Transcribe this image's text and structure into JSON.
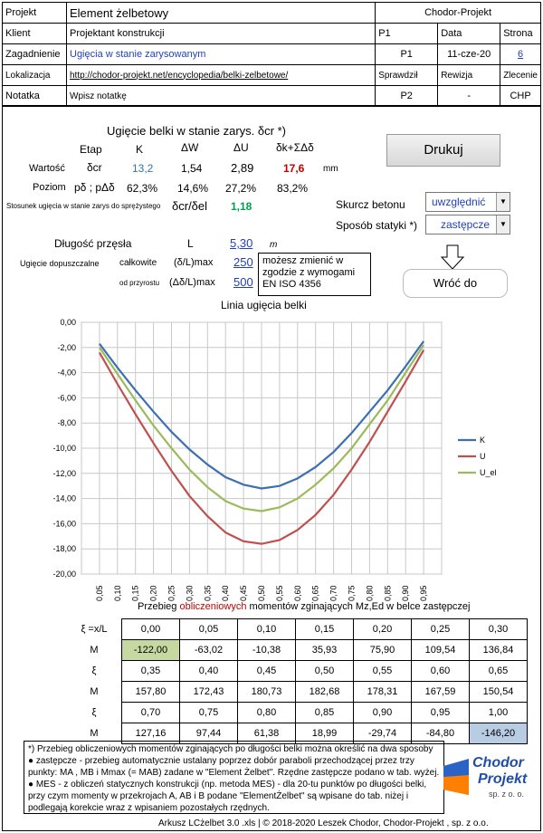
{
  "header": {
    "projekt_lbl": "Projekt",
    "projekt_val": "Element żelbetowy",
    "brand": "Chodor-Projekt",
    "klient_lbl": "Klient",
    "klient_val": "Projektant konstrukcji",
    "p1_lbl": "P1",
    "data_lbl": "Data",
    "strona_lbl": "Strona",
    "zag_lbl": "Zagadnienie",
    "zag_val": "Ugięcia w stanie zarysowanym",
    "p1_val": "P1",
    "data_val": "11-cze-20",
    "strona_val": "6",
    "lok_lbl": "Lokalizacja",
    "lok_val": "http://chodor-projekt.net/encyclopedia/belki-zelbetowe/",
    "spr_lbl": "Sprawdził",
    "rew_lbl": "Rewizja",
    "zlec_lbl": "Zlecenie",
    "not_lbl": "Notatka",
    "not_val": "Wpisz notatkę",
    "spr_val": "P2",
    "rew_val": "-",
    "zlec_val": "CHP"
  },
  "calc": {
    "title": "Ugięcie belki w stanie zarys. δcr *)",
    "col_etap": "Etap",
    "col_k": "K",
    "col_dw": "ΔW",
    "col_du": "ΔU",
    "col_sum": "δk+ΣΔδ",
    "row1_lbl": "Wartość",
    "row1_sym": "δcr",
    "row1_k": "13,2",
    "row1_dw": "1,54",
    "row1_du": "2,89",
    "row1_sum": "17,6",
    "row1_unit": "mm",
    "row2_lbl": "Poziom",
    "row2_sym": "pδ ; pΔδ",
    "row2_k": "62,3%",
    "row2_dw": "14,6%",
    "row2_du": "27,2%",
    "row2_sum": "83,2%",
    "row3_lbl": "Stosunek ugięcia w stanie zarys do sprężystego",
    "row3_sym": "δcr/δel",
    "row3_val": "1,18",
    "len_lbl": "Długość przęsła",
    "len_sym": "L",
    "len_val": "5,30",
    "len_unit": "m",
    "dop_lbl": "Ugięcie dopuszczalne",
    "calk_lbl": "całkowite",
    "calk_sym": "(δ/L)max",
    "calk_val": "250",
    "przy_lbl": "od przyrostu",
    "przy_sym": "(Δδ/L)max",
    "przy_val": "500",
    "note": "możesz zmienić w zgodzie z wymogami EN ISO 4356"
  },
  "controls": {
    "print_btn": "Drukuj",
    "skurcz_lbl": "Skurcz betonu",
    "skurcz_val": "uwzględnić",
    "statyka_lbl": "Sposób statyki *)",
    "statyka_val": "zastępcze",
    "back_btn": "Wróć do"
  },
  "chart_data": {
    "type": "line",
    "title": "Linia ugięcia belki",
    "x": [
      0.05,
      0.1,
      0.15,
      0.2,
      0.25,
      0.3,
      0.35,
      0.4,
      0.45,
      0.5,
      0.55,
      0.6,
      0.65,
      0.7,
      0.75,
      0.8,
      0.85,
      0.9,
      0.95
    ],
    "xtick_labels": [
      "0,05",
      "0,10",
      "0,15",
      "0,20",
      "0,25",
      "0,30",
      "0,35",
      "0,40",
      "0,45",
      "0,50",
      "0,55",
      "0,60",
      "0,65",
      "0,70",
      "0,75",
      "0,80",
      "0,85",
      "0,90",
      "0,95"
    ],
    "ylim": [
      -20,
      0
    ],
    "ytick_labels": [
      "0,00",
      "-2,00",
      "-4,00",
      "-6,00",
      "-8,00",
      "-10,00",
      "-12,00",
      "-14,00",
      "-16,00",
      "-18,00",
      "-20,00"
    ],
    "series": [
      {
        "name": "K",
        "color": "#3c6fb4",
        "values": [
          -1.7,
          -3.6,
          -5.4,
          -7.1,
          -8.7,
          -10.1,
          -11.3,
          -12.3,
          -12.9,
          -13.2,
          -13.0,
          -12.4,
          -11.5,
          -10.3,
          -8.8,
          -7.1,
          -5.4,
          -3.5,
          -1.5
        ]
      },
      {
        "name": "U",
        "color": "#c0504d",
        "values": [
          -2.4,
          -4.9,
          -7.3,
          -9.6,
          -11.8,
          -13.8,
          -15.4,
          -16.7,
          -17.4,
          -17.6,
          -17.3,
          -16.5,
          -15.3,
          -13.7,
          -11.7,
          -9.5,
          -7.1,
          -4.7,
          -2.2
        ]
      },
      {
        "name": "U_el",
        "color": "#9bbb59",
        "values": [
          -2.0,
          -4.1,
          -6.2,
          -8.2,
          -10.0,
          -11.7,
          -13.1,
          -14.2,
          -14.8,
          -15.0,
          -14.7,
          -14.0,
          -12.9,
          -11.6,
          -10.0,
          -8.1,
          -6.2,
          -4.0,
          -1.8
        ]
      }
    ]
  },
  "moments": {
    "title_pre": "Przebieg ",
    "title_red": "obliczeniowych",
    "title_post": " momentów zginających Mz,Ed w belce zastępczej",
    "rows": [
      {
        "h": "ξ =x/L",
        "v": [
          "0,00",
          "0,05",
          "0,10",
          "0,15",
          "0,20",
          "0,25",
          "0,30"
        ]
      },
      {
        "h": "M",
        "v": [
          "-122,00",
          "-63,02",
          "-10,38",
          "35,93",
          "75,90",
          "109,54",
          "136,84"
        ]
      },
      {
        "h": "ξ",
        "v": [
          "0,35",
          "0,40",
          "0,45",
          "0,50",
          "0,55",
          "0,60",
          "0,65"
        ]
      },
      {
        "h": "M",
        "v": [
          "157,80",
          "172,43",
          "180,73",
          "182,68",
          "178,31",
          "167,59",
          "150,54"
        ]
      },
      {
        "h": "ξ",
        "v": [
          "0,70",
          "0,75",
          "0,80",
          "0,85",
          "0,90",
          "0,95",
          "1,00"
        ]
      },
      {
        "h": "M",
        "v": [
          "127,16",
          "97,44",
          "61,38",
          "18,99",
          "-29,74",
          "-84,80",
          "-146,20"
        ]
      }
    ]
  },
  "footnote": {
    "l1": "*) Przebieg obliczeniowych momentów zginających po długości belki można określić na dwa sposoby",
    "l2": "● zastępcze - przebieg automatycznie ustalany poprzez dobór paraboli przechodzącej przez trzy punkty: MA , MB i Mmax (= MAB) zadane w \"Element Żelbet\". Rzędne zastępcze podano w tab. wyżej.",
    "l3": "● MES - z obliczeń statycznych konstrukcji (np. metoda MES) - dla 20-tu punktów po długości belki, przy czym momenty w przekrojach A, AB i B podane \"ElementŻelbet\" są wpisane do tab. niżej i podlegają korekcie wraz z wpisaniem pozostałych rzędnych."
  },
  "logo": {
    "line1": "Chodor",
    "line2": "Projekt",
    "line3": "sp. z o. o."
  },
  "footer": "Arkusz LCżelbet 3.0 .xls | © 2018-2020 Leszek Chodor, Chodor-Projekt , sp. z o.o."
}
